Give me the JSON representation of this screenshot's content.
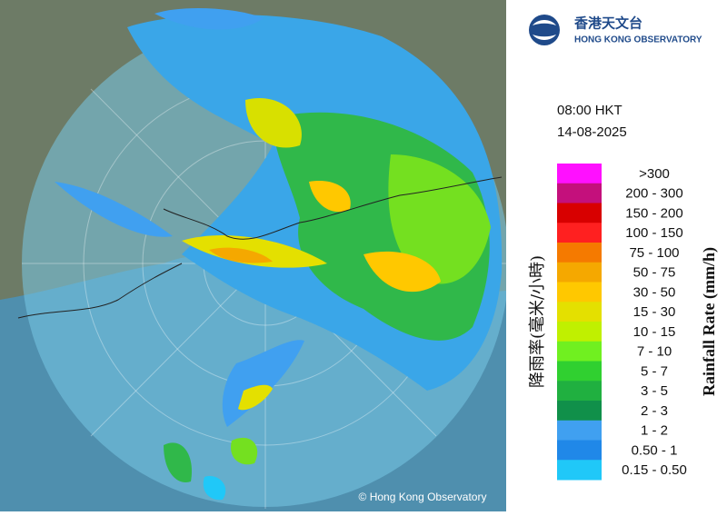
{
  "logo": {
    "chinese": "香港天文台",
    "english": "HONG KONG OBSERVATORY"
  },
  "time": "08:00 HKT",
  "date": "14-08-2025",
  "legend": {
    "title_en": "Rainfall Rate (mm/h)",
    "title_zh": "降雨率(毫米/小時)",
    "entries": [
      {
        "label": ">300",
        "color": "#ff10ff"
      },
      {
        "label": "200 - 300",
        "color": "#c4107c"
      },
      {
        "label": "150 - 200",
        "color": "#d80000"
      },
      {
        "label": "100 - 150",
        "color": "#ff2020"
      },
      {
        "label": "75 - 100",
        "color": "#f57a00"
      },
      {
        "label": "50 - 75",
        "color": "#f5a800"
      },
      {
        "label": "30 - 50",
        "color": "#ffc800"
      },
      {
        "label": "15 - 30",
        "color": "#e4e000"
      },
      {
        "label": "10 - 15",
        "color": "#c0f000"
      },
      {
        "label": "7 - 10",
        "color": "#70f020"
      },
      {
        "label": "5 - 7",
        "color": "#30d030"
      },
      {
        "label": "3 - 5",
        "color": "#20b040"
      },
      {
        "label": "2 - 3",
        "color": "#10904a"
      },
      {
        "label": "1 - 2",
        "color": "#40a0f0"
      },
      {
        "label": "0.50 - 1",
        "color": "#2088e8"
      },
      {
        "label": "0.15 - 0.50",
        "color": "#20c8f8"
      }
    ]
  },
  "copyright": "© Hong Kong Observatory"
}
